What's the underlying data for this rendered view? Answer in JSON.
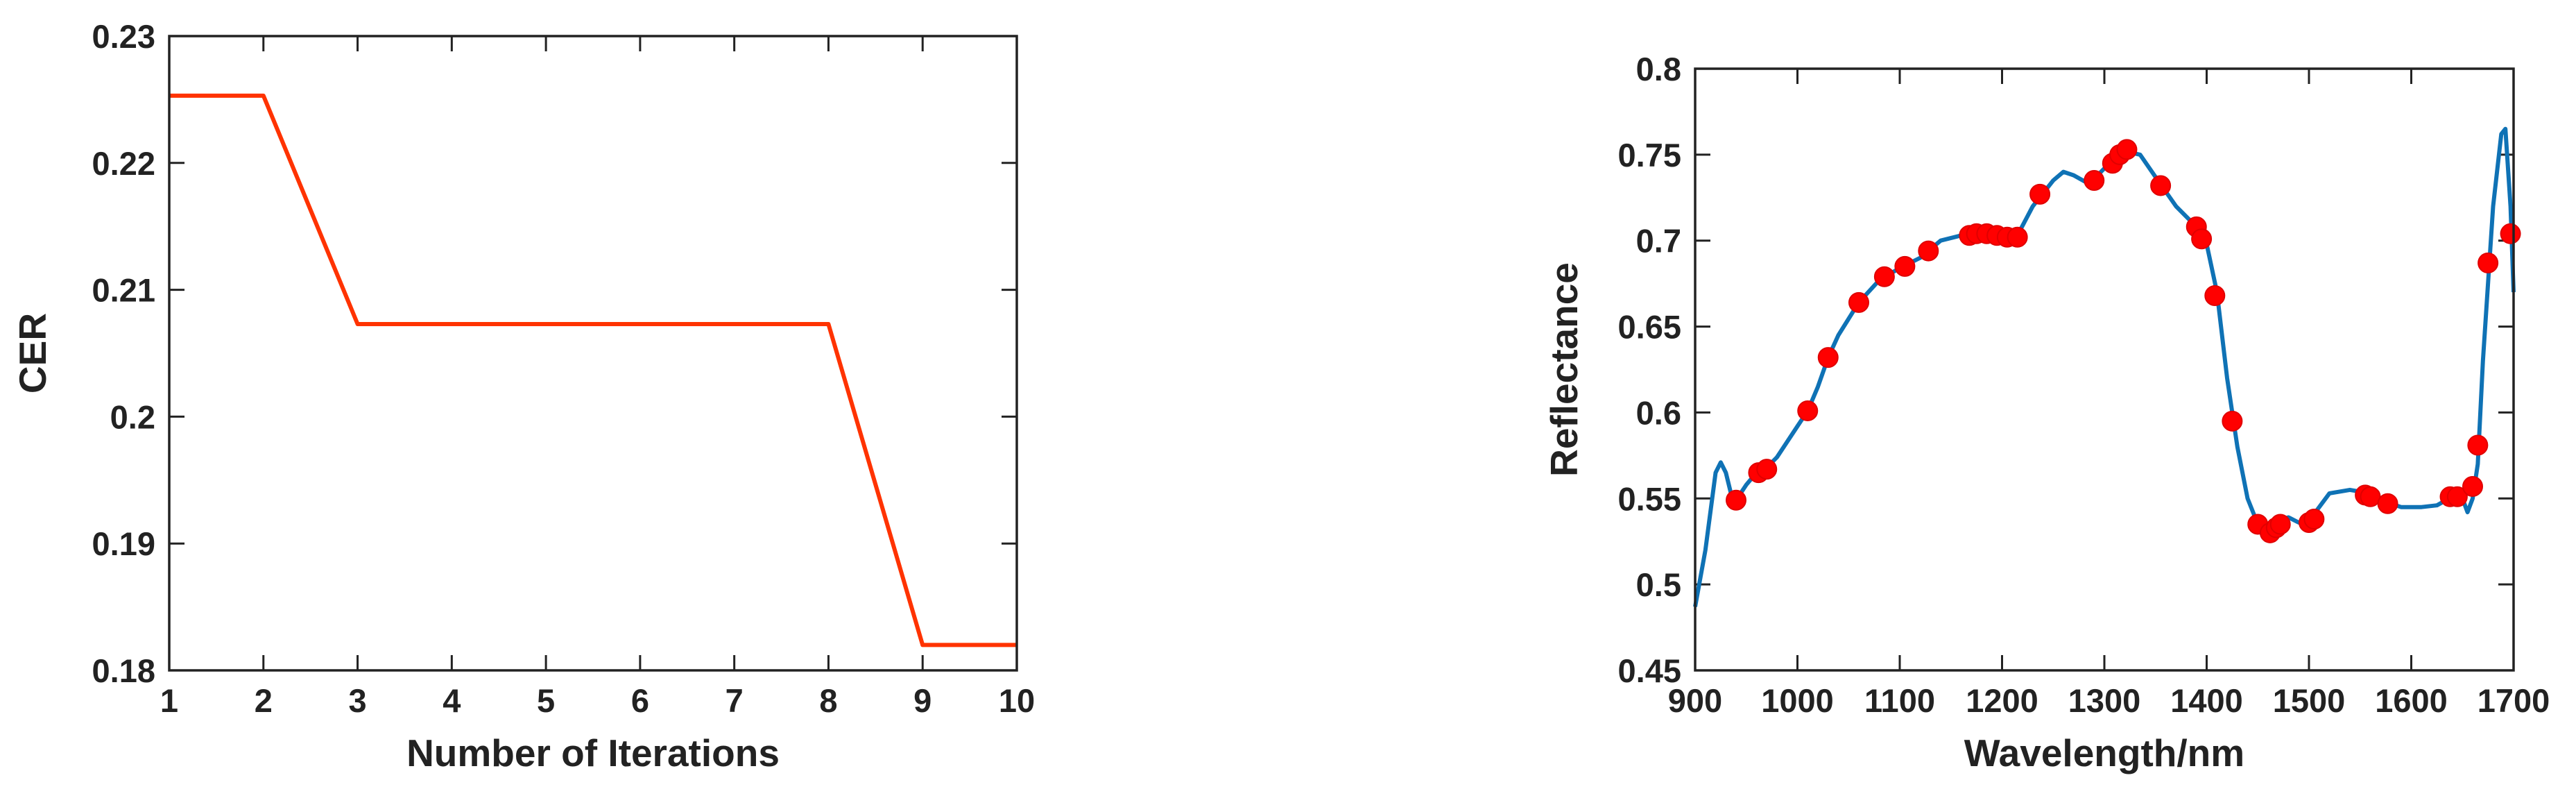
{
  "chart_data": [
    {
      "type": "line",
      "x_label": "Number of Iterations",
      "y_label": "CER",
      "x": [
        1,
        2,
        3,
        4,
        5,
        6,
        7,
        8,
        9,
        10
      ],
      "values": [
        0.2253,
        0.2253,
        0.2073,
        0.2073,
        0.2073,
        0.2073,
        0.2073,
        0.2073,
        0.182,
        0.182
      ],
      "color": "#ff3300",
      "xlim": [
        1,
        10
      ],
      "xticks": [
        1,
        2,
        3,
        4,
        5,
        6,
        7,
        8,
        9,
        10
      ],
      "ylim": [
        0.18,
        0.23
      ],
      "yticks": [
        0.18,
        0.19,
        0.2,
        0.21,
        0.22,
        0.23
      ]
    },
    {
      "type": "line",
      "x_label": "Wavelength/nm",
      "y_label": "Reflectance",
      "series": [
        {
          "type": "line",
          "color": "#0f72b5",
          "x": [
            900,
            910,
            920,
            925,
            930,
            935,
            940,
            950,
            960,
            970,
            980,
            1000,
            1010,
            1020,
            1030,
            1040,
            1060,
            1080,
            1100,
            1120,
            1140,
            1160,
            1180,
            1200,
            1215,
            1230,
            1250,
            1260,
            1270,
            1285,
            1300,
            1320,
            1335,
            1350,
            1370,
            1390,
            1400,
            1410,
            1420,
            1430,
            1440,
            1450,
            1460,
            1470,
            1480,
            1490,
            1500,
            1510,
            1520,
            1540,
            1560,
            1575,
            1590,
            1610,
            1625,
            1640,
            1650,
            1655,
            1660,
            1665,
            1670,
            1680,
            1688,
            1692,
            1697,
            1700
          ],
          "values": [
            0.487,
            0.52,
            0.565,
            0.571,
            0.565,
            0.553,
            0.549,
            0.558,
            0.565,
            0.568,
            0.574,
            0.592,
            0.601,
            0.615,
            0.632,
            0.645,
            0.664,
            0.677,
            0.684,
            0.69,
            0.7,
            0.703,
            0.705,
            0.704,
            0.703,
            0.72,
            0.735,
            0.74,
            0.738,
            0.733,
            0.742,
            0.752,
            0.75,
            0.737,
            0.72,
            0.708,
            0.698,
            0.67,
            0.62,
            0.58,
            0.55,
            0.535,
            0.533,
            0.537,
            0.539,
            0.536,
            0.537,
            0.545,
            0.553,
            0.555,
            0.553,
            0.548,
            0.545,
            0.545,
            0.546,
            0.551,
            0.55,
            0.542,
            0.55,
            0.57,
            0.63,
            0.72,
            0.762,
            0.765,
            0.72,
            0.67
          ]
        },
        {
          "type": "scatter",
          "color": "#ff0000",
          "x": [
            940,
            962,
            970,
            1010,
            1030,
            1060,
            1085,
            1105,
            1128,
            1168,
            1175,
            1185,
            1195,
            1205,
            1215,
            1237,
            1290,
            1308,
            1315,
            1322,
            1355,
            1390,
            1395,
            1408,
            1425,
            1450,
            1462,
            1468,
            1472,
            1500,
            1505,
            1555,
            1560,
            1577,
            1638,
            1645,
            1660,
            1665,
            1675,
            1697
          ],
          "values": [
            0.549,
            0.565,
            0.567,
            0.601,
            0.632,
            0.664,
            0.679,
            0.685,
            0.694,
            0.703,
            0.704,
            0.704,
            0.703,
            0.702,
            0.702,
            0.727,
            0.735,
            0.745,
            0.75,
            0.753,
            0.732,
            0.708,
            0.701,
            0.668,
            0.595,
            0.535,
            0.53,
            0.533,
            0.535,
            0.536,
            0.538,
            0.552,
            0.551,
            0.547,
            0.551,
            0.551,
            0.557,
            0.581,
            0.687,
            0.704
          ]
        }
      ],
      "xlim": [
        900,
        1700
      ],
      "xticks": [
        900,
        1000,
        1100,
        1200,
        1300,
        1400,
        1500,
        1600,
        1700
      ],
      "ylim": [
        0.45,
        0.8
      ],
      "yticks": [
        0.45,
        0.5,
        0.55,
        0.6,
        0.65,
        0.7,
        0.75,
        0.8
      ]
    }
  ]
}
